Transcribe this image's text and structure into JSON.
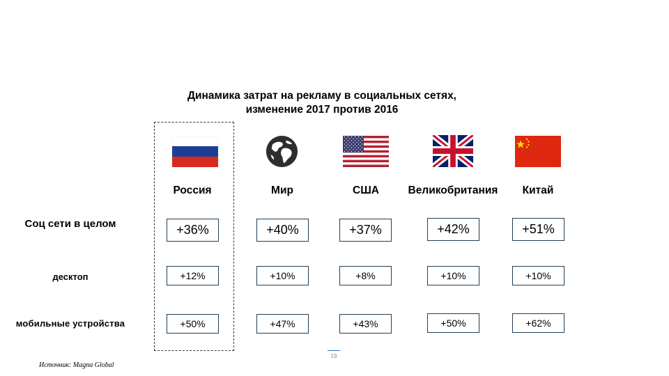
{
  "chart_data": {
    "type": "table",
    "title_lines": [
      "Динамика затрат на рекламу в социальных сетях,",
      "изменение 2017 против 2016"
    ],
    "columns": [
      "Россия",
      "Мир",
      "США",
      "Великобритания",
      "Китай"
    ],
    "rows": [
      {
        "label": "Соц сети в целом",
        "values": [
          "+36%",
          "+40%",
          "+37%",
          "+42%",
          "+51%"
        ]
      },
      {
        "label": "десктоп",
        "values": [
          "+12%",
          "+10%",
          "+8%",
          "+10%",
          "+10%"
        ]
      },
      {
        "label": "мобильные устройства",
        "values": [
          "+50%",
          "+47%",
          "+43%",
          "+50%",
          "+62%"
        ]
      }
    ],
    "highlighted_column": "Россия"
  },
  "icons": [
    "russia-flag-icon",
    "globe-icon",
    "usa-flag-icon",
    "uk-flag-icon",
    "china-flag-icon"
  ],
  "colors": {
    "box_border": "#1f3d55",
    "russia_blue": "#1c3f95",
    "russia_red": "#d52b1e",
    "us_red": "#b22234",
    "us_blue": "#3c3b6e",
    "uk_blue": "#012169",
    "uk_red": "#c8102e",
    "china_red": "#de2910",
    "china_star": "#ffde00"
  },
  "page_number": "19",
  "source": "Источник: Magna Global"
}
